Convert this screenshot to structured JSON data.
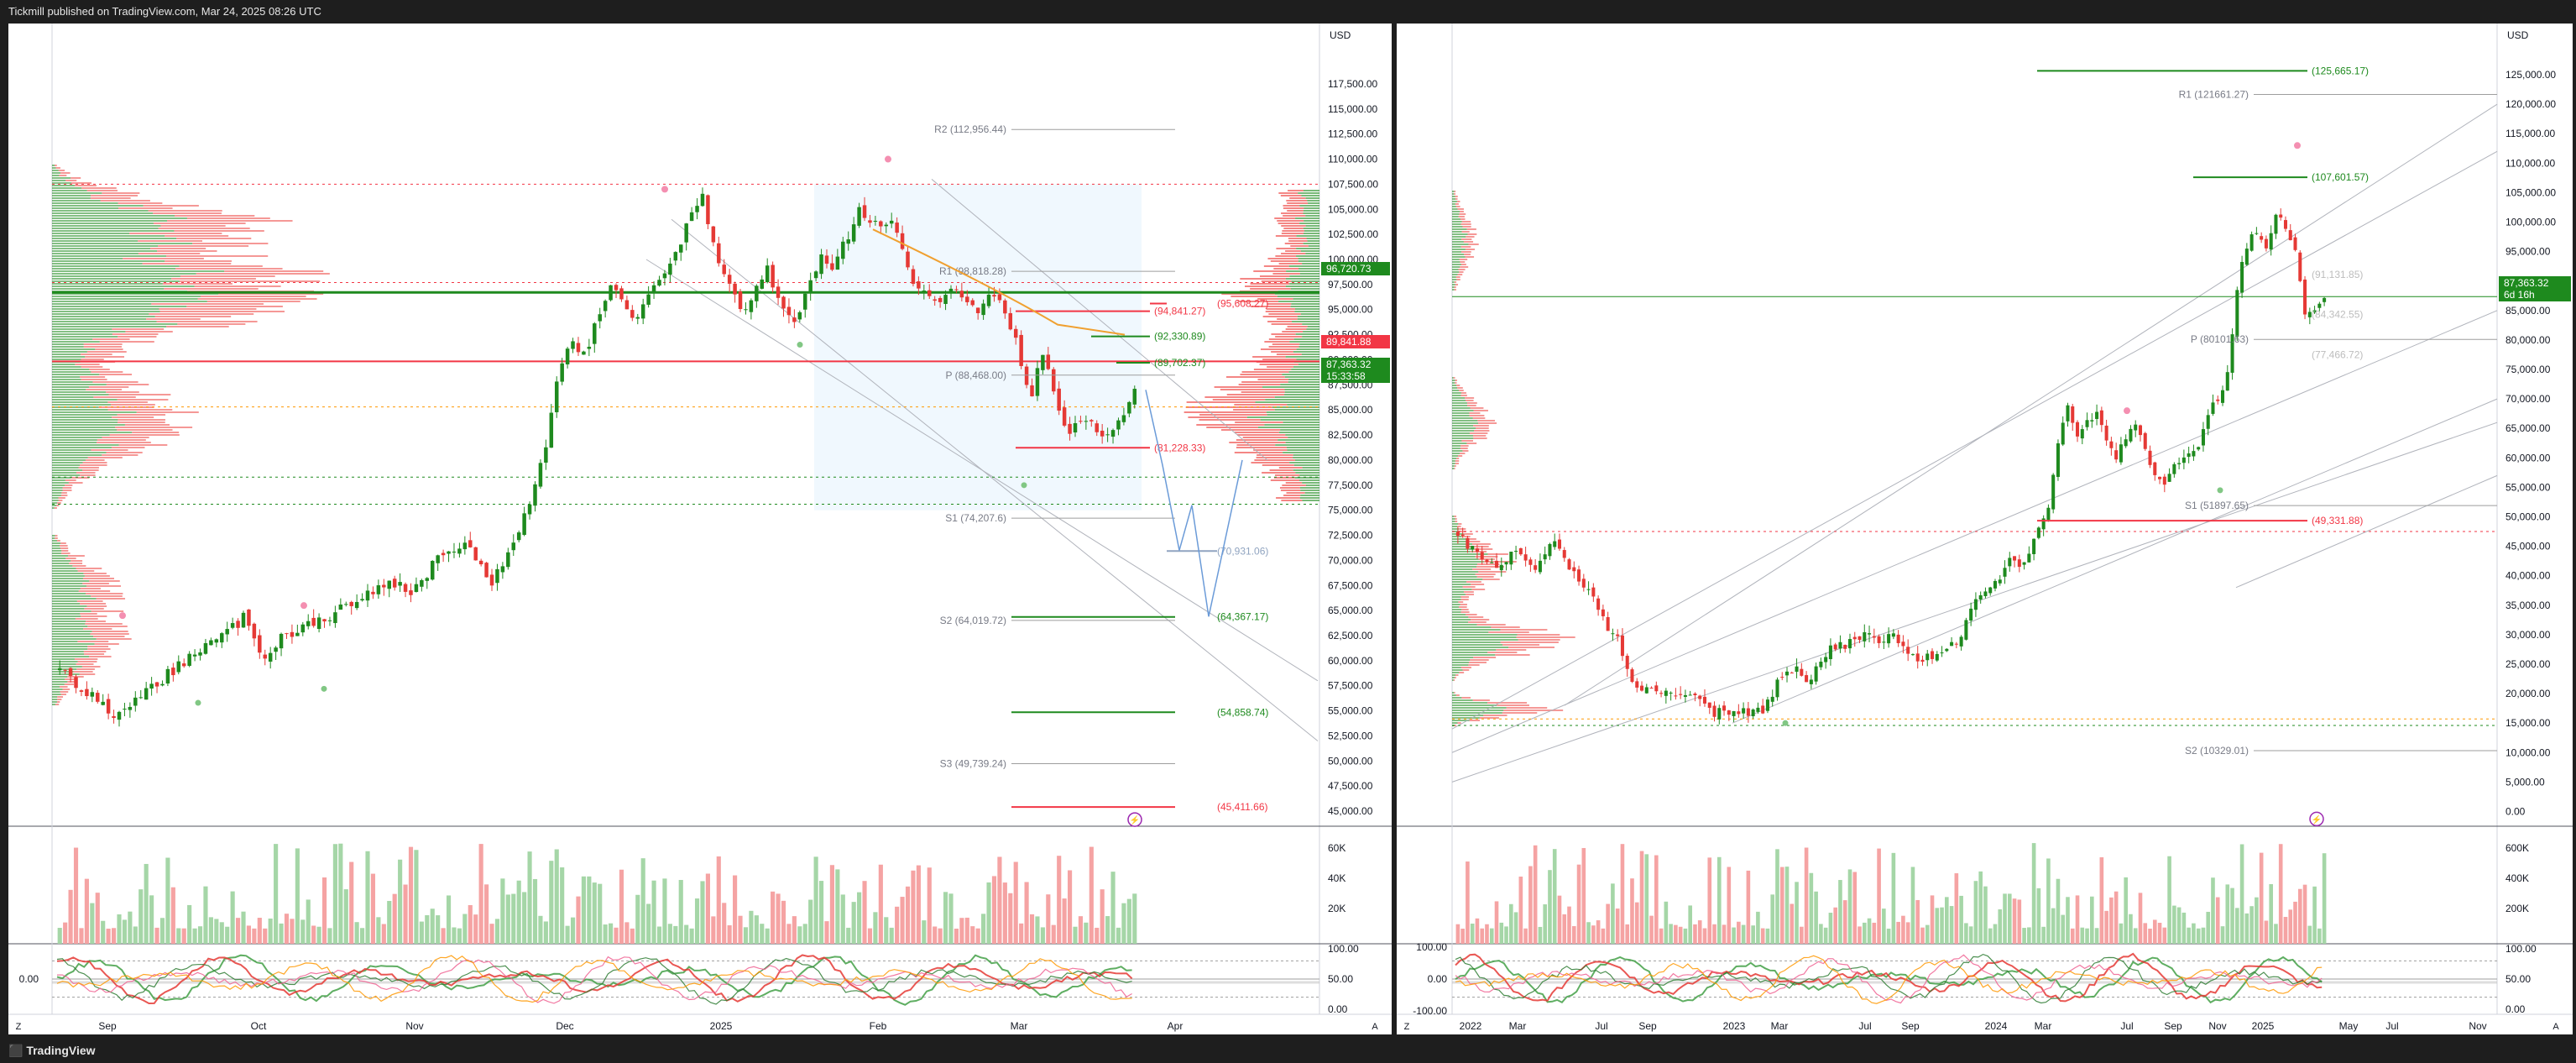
{
  "header": {
    "publish_text": "Tickmill published on TradingView.com, Mar 24, 2025 08:26 UTC"
  },
  "footer": {
    "brand": "TradingView"
  },
  "colors": {
    "up": "#26a69a",
    "up_bar": "#1e8a1e",
    "down": "#ef5350",
    "vol_up": "#a5d6a7",
    "vol_down": "#f5a3a3",
    "accent": "#9c27b0"
  },
  "chart_data": [
    {
      "type": "candlestick",
      "id": "left-daily",
      "currency": "USD",
      "ylim": [
        43500,
        118500
      ],
      "y_ticks": [
        "117,500.00",
        "115,000.00",
        "112,500.00",
        "110,000.00",
        "107,500.00",
        "105,000.00",
        "102,500.00",
        "100,000.00",
        "97,500.00",
        "95,000.00",
        "92,500.00",
        "90,000.00",
        "87,500.00",
        "85,000.00",
        "82,500.00",
        "80,000.00",
        "77,500.00",
        "75,000.00",
        "72,500.00",
        "70,000.00",
        "67,500.00",
        "65,000.00",
        "62,500.00",
        "60,000.00",
        "57,500.00",
        "55,000.00",
        "52,500.00",
        "50,000.00",
        "47,500.00",
        "45,000.00"
      ],
      "x_ticks": [
        "Sep",
        "Oct",
        "Nov",
        "Dec",
        "2025",
        "Feb",
        "Mar",
        "Apr"
      ],
      "close_path": [
        [
          0,
          59000
        ],
        [
          4,
          57000
        ],
        [
          8,
          54500
        ],
        [
          10,
          55200
        ],
        [
          14,
          57200
        ],
        [
          18,
          59500
        ],
        [
          22,
          61500
        ],
        [
          26,
          63000
        ],
        [
          28,
          64300
        ],
        [
          30,
          61500
        ],
        [
          32,
          60200
        ],
        [
          34,
          62500
        ],
        [
          38,
          63500
        ],
        [
          42,
          64800
        ],
        [
          46,
          66500
        ],
        [
          50,
          67800
        ],
        [
          54,
          67000
        ],
        [
          58,
          70500
        ],
        [
          62,
          72000
        ],
        [
          64,
          69500
        ],
        [
          66,
          67800
        ],
        [
          70,
          72500
        ],
        [
          72,
          76500
        ],
        [
          74,
          80500
        ],
        [
          76,
          88000
        ],
        [
          78,
          91500
        ],
        [
          80,
          90500
        ],
        [
          84,
          97500
        ],
        [
          86,
          95500
        ],
        [
          88,
          94000
        ],
        [
          90,
          96500
        ],
        [
          92,
          98500
        ],
        [
          94,
          100500
        ],
        [
          96,
          104000
        ],
        [
          98,
          106500
        ],
        [
          100,
          100500
        ],
        [
          102,
          97500
        ],
        [
          104,
          94500
        ],
        [
          106,
          96500
        ],
        [
          108,
          99000
        ],
        [
          110,
          95500
        ],
        [
          112,
          94000
        ],
        [
          114,
          96500
        ],
        [
          116,
          100500
        ],
        [
          118,
          99000
        ],
        [
          120,
          102000
        ],
        [
          122,
          105000
        ],
        [
          124,
          103500
        ],
        [
          126,
          104000
        ],
        [
          128,
          102500
        ],
        [
          130,
          97500
        ],
        [
          132,
          96500
        ],
        [
          134,
          95500
        ],
        [
          136,
          97000
        ],
        [
          138,
          96000
        ],
        [
          140,
          94500
        ],
        [
          142,
          96500
        ],
        [
          144,
          95000
        ],
        [
          146,
          92000
        ],
        [
          148,
          85500
        ],
        [
          150,
          91000
        ],
        [
          152,
          85500
        ],
        [
          154,
          82000
        ],
        [
          156,
          84500
        ],
        [
          158,
          83000
        ],
        [
          160,
          82500
        ],
        [
          162,
          84500
        ],
        [
          164,
          87363.32
        ]
      ],
      "volume_labels": [
        "60K",
        "40K",
        "20K"
      ],
      "oscillator_labels": [
        "100.00",
        "50.00",
        "0.00"
      ],
      "oscillator_left_label": "0.00",
      "price_badges": [
        {
          "value": "96,720.73",
          "color": "#1e8a1e"
        },
        {
          "value": "89,841.88",
          "color": "#f23645"
        },
        {
          "value": "87,363.32",
          "color": "#1e8a1e"
        },
        {
          "value": "15:33:58",
          "color": "#1e8a1e"
        }
      ],
      "levels": [
        {
          "label": "R2 (112,956.44)",
          "value": 112956.44,
          "color": "#9e9e9e"
        },
        {
          "label": "R1 (98,818.28)",
          "value": 98818.28,
          "color": "#9e9e9e"
        },
        {
          "label": "P (88,468.00)",
          "value": 88468.0,
          "color": "#9e9e9e"
        },
        {
          "label": "S1 (74,207.6)",
          "value": 74207.6,
          "color": "#9e9e9e"
        },
        {
          "label": "S2 (64,019.72)",
          "value": 64019.72,
          "color": "#9e9e9e"
        },
        {
          "label": "S3 (49,739.24)",
          "value": 49739.24,
          "color": "#9e9e9e"
        }
      ],
      "annotations": [
        {
          "label": "(94,841.27)",
          "value": 94841.27,
          "color": "#f23645"
        },
        {
          "label": "(95,608.27)",
          "value": 95608.27,
          "color": "#f23645"
        },
        {
          "label": "(92,330.89)",
          "value": 92330.89,
          "color": "#1e8a1e"
        },
        {
          "label": "(89,702.37)",
          "value": 89702.37,
          "color": "#1e8a1e"
        },
        {
          "label": "(81,228.33)",
          "value": 81228.33,
          "color": "#f23645"
        },
        {
          "label": "(70,931.06)",
          "value": 70931.06,
          "color": "#90a4c0"
        },
        {
          "label": "(64,367.17)",
          "value": 64367.17,
          "color": "#1e8a1e"
        },
        {
          "label": "(54,858.74)",
          "value": 54858.74,
          "color": "#1e8a1e"
        },
        {
          "label": "(45,411.66)",
          "value": 45411.66,
          "color": "#f23645"
        }
      ]
    },
    {
      "type": "candlestick",
      "id": "right-weekly",
      "currency": "USD",
      "ylim": [
        -2500,
        128000
      ],
      "y_ticks": [
        "125,000.00",
        "120,000.00",
        "115,000.00",
        "110,000.00",
        "105,000.00",
        "100,000.00",
        "95,000.00",
        "90,000.00",
        "85,000.00",
        "80,000.00",
        "75,000.00",
        "70,000.00",
        "65,000.00",
        "60,000.00",
        "55,000.00",
        "50,000.00",
        "45,000.00",
        "40,000.00",
        "35,000.00",
        "30,000.00",
        "25,000.00",
        "20,000.00",
        "15,000.00",
        "10,000.00",
        "5,000.00",
        "0.00"
      ],
      "x_ticks": [
        "2022",
        "Mar",
        "Jul",
        "Sep",
        "2023",
        "Mar",
        "Jul",
        "Sep",
        "2024",
        "Mar",
        "Jul",
        "Sep",
        "Nov",
        "2025",
        "May",
        "Jul",
        "Nov"
      ],
      "close_path": [
        [
          0,
          47000
        ],
        [
          4,
          43500
        ],
        [
          8,
          41000
        ],
        [
          12,
          44500
        ],
        [
          16,
          40500
        ],
        [
          20,
          45500
        ],
        [
          24,
          40500
        ],
        [
          28,
          37500
        ],
        [
          32,
          30000
        ],
        [
          34,
          29000
        ],
        [
          36,
          22000
        ],
        [
          38,
          20000
        ],
        [
          42,
          21000
        ],
        [
          46,
          19800
        ],
        [
          50,
          19000
        ],
        [
          54,
          16800
        ],
        [
          58,
          16600
        ],
        [
          62,
          17000
        ],
        [
          64,
          17200
        ],
        [
          68,
          23000
        ],
        [
          72,
          24000
        ],
        [
          74,
          22000
        ],
        [
          78,
          28000
        ],
        [
          82,
          28500
        ],
        [
          86,
          30000
        ],
        [
          88,
          29000
        ],
        [
          92,
          29500
        ],
        [
          96,
          26000
        ],
        [
          100,
          26500
        ],
        [
          102,
          27000
        ],
        [
          106,
          30000
        ],
        [
          108,
          35000
        ],
        [
          112,
          37500
        ],
        [
          116,
          42500
        ],
        [
          118,
          42000
        ],
        [
          120,
          44000
        ],
        [
          122,
          48000
        ],
        [
          124,
          52000
        ],
        [
          126,
          62000
        ],
        [
          128,
          69000
        ],
        [
          130,
          64000
        ],
        [
          132,
          66000
        ],
        [
          134,
          68000
        ],
        [
          138,
          60000
        ],
        [
          142,
          66000
        ],
        [
          146,
          58000
        ],
        [
          148,
          55000
        ],
        [
          152,
          60000
        ],
        [
          156,
          63000
        ],
        [
          158,
          68000
        ],
        [
          160,
          70000
        ],
        [
          162,
          76000
        ],
        [
          164,
          90000
        ],
        [
          166,
          97000
        ],
        [
          168,
          99000
        ],
        [
          170,
          95000
        ],
        [
          172,
          101000
        ],
        [
          174,
          99000
        ],
        [
          176,
          95000
        ],
        [
          178,
          84000
        ],
        [
          180,
          85000
        ],
        [
          182,
          87363.32
        ]
      ],
      "volume_labels": [
        "600K",
        "400K",
        "200K"
      ],
      "oscillator_labels": [
        "100.00",
        "50.00",
        "0.00"
      ],
      "oscillator_left_labels": [
        "100.00",
        "0.00",
        "-100.00"
      ],
      "price_badges": [
        {
          "value": "87,363.32",
          "color": "#1e8a1e"
        },
        {
          "value": "6d 16h",
          "color": "#1e8a1e"
        }
      ],
      "levels": [
        {
          "label": "R1 (121661.27)",
          "value": 121661.27,
          "color": "#9e9e9e"
        },
        {
          "label": "P (80101.63)",
          "value": 80101.63,
          "color": "#9e9e9e"
        },
        {
          "label": "S1 (51897.65)",
          "value": 51897.65,
          "color": "#9e9e9e"
        },
        {
          "label": "S2 (10329.01)",
          "value": 10329.01,
          "color": "#9e9e9e"
        }
      ],
      "annotations": [
        {
          "label": "(125,665.17)",
          "value": 125665.17,
          "color": "#1e8a1e"
        },
        {
          "label": "(107,601.57)",
          "value": 107601.57,
          "color": "#1e8a1e"
        },
        {
          "label": "(91,131.85)",
          "value": 91131.85,
          "color": "#bdbdbd"
        },
        {
          "label": "(84,342.55)",
          "value": 84342.55,
          "color": "#bdbdbd"
        },
        {
          "label": "(77,466.72)",
          "value": 77466.72,
          "color": "#bdbdbd"
        },
        {
          "label": "(49,331.88)",
          "value": 49331.88,
          "color": "#f23645"
        }
      ]
    }
  ],
  "panel_corner": {
    "left_z": "Z",
    "right_a": "A"
  }
}
